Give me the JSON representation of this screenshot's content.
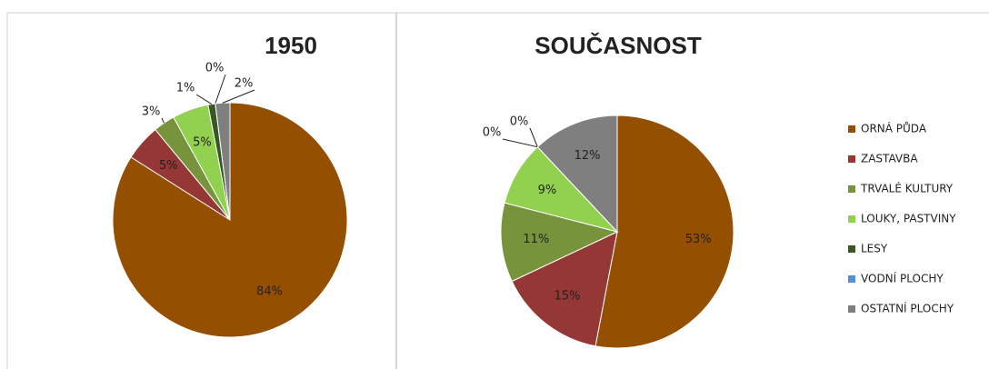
{
  "chart_data": [
    {
      "type": "pie",
      "title": "1950",
      "values": [
        84,
        5,
        3,
        5,
        1,
        0,
        2
      ],
      "value_labels": [
        "84%",
        "5%",
        "3%",
        "5%",
        "1%",
        "0%",
        "2%"
      ]
    },
    {
      "type": "pie",
      "title": "SOUČASNOST",
      "values": [
        53,
        15,
        11,
        9,
        0,
        0,
        12
      ],
      "value_labels": [
        "53%",
        "15%",
        "11%",
        "9%",
        "0%",
        "0%",
        "12%"
      ]
    }
  ],
  "legend": {
    "position": "right",
    "labels": [
      "ORNÁ PŮDA",
      "ZASTAVBA",
      "TRVALÉ KULTURY",
      "LOUKY, PASTVINY",
      "LESY",
      "VODNÍ PLOCHY",
      "OSTATNÍ PLOCHY"
    ],
    "colors": [
      "#954f00",
      "#953735",
      "#77933c",
      "#92d050",
      "#385723",
      "#558ed5",
      "#7f7f7f"
    ]
  }
}
